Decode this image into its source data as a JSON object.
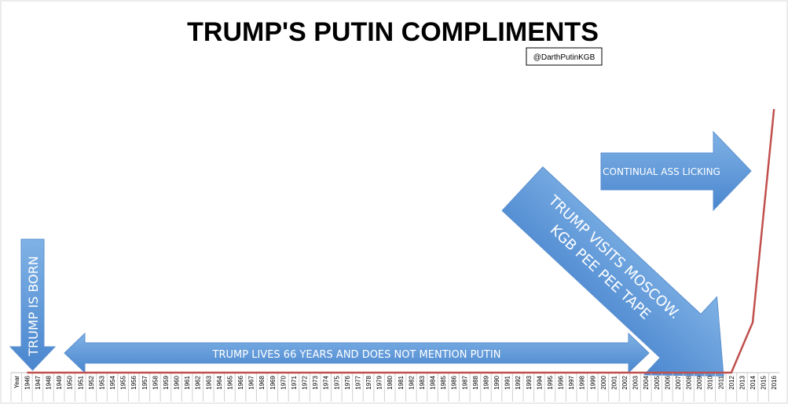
{
  "chart_data": {
    "type": "line",
    "title": "TRUMP'S PUTIN COMPLIMENTS",
    "credit": "@DarthPutinKGB",
    "annotations": [
      "TRUMP IS BORN",
      "TRUMP LIVES 66 YEARS AND DOES NOT MENTION PUTIN",
      "TRUMP VISITS MOSCOW.",
      "KGB PEE PEE TAPE",
      "CONTINUAL ASS LICKING"
    ],
    "categories": [
      "Year",
      "1946",
      "1947",
      "1948",
      "1949",
      "1950",
      "1951",
      "1952",
      "1953",
      "1954",
      "1955",
      "1956",
      "1957",
      "1958",
      "1959",
      "1960",
      "1961",
      "1962",
      "1963",
      "1964",
      "1965",
      "1966",
      "1967",
      "1968",
      "1969",
      "1970",
      "1971",
      "1972",
      "1973",
      "1974",
      "1975",
      "1976",
      "1977",
      "1978",
      "1979",
      "1980",
      "1981",
      "1982",
      "1983",
      "1984",
      "1985",
      "1986",
      "1987",
      "1988",
      "1989",
      "1990",
      "1991",
      "1992",
      "1993",
      "1994",
      "1995",
      "1996",
      "1997",
      "1998",
      "1999",
      "2000",
      "2001",
      "2002",
      "2003",
      "2004",
      "2005",
      "2006",
      "2007",
      "2008",
      "2009",
      "2010",
      "2011",
      "2012",
      "2013",
      "2014",
      "2015",
      "2016"
    ],
    "values": [
      null,
      0,
      0,
      0,
      0,
      0,
      0,
      0,
      0,
      0,
      0,
      0,
      0,
      0,
      0,
      0,
      0,
      0,
      0,
      0,
      0,
      0,
      0,
      0,
      0,
      0,
      0,
      0,
      0,
      0,
      0,
      0,
      0,
      0,
      0,
      0,
      0,
      0,
      0,
      0,
      0,
      0,
      0,
      0,
      0,
      0,
      0,
      0,
      0,
      0,
      0,
      0,
      0,
      0,
      0,
      0,
      0,
      0,
      0,
      0,
      0,
      0,
      0,
      0,
      0,
      0,
      0,
      0,
      8,
      16,
      50,
      84
    ],
    "color": "#c0504d",
    "ylim": [
      0,
      100
    ],
    "grid": true
  }
}
